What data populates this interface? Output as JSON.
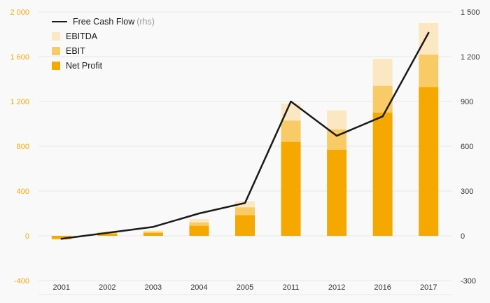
{
  "chart_data": {
    "type": "bar",
    "subtype": "stacked-bar-with-line",
    "categories": [
      "2001",
      "2002",
      "2003",
      "2004",
      "2005",
      "2011",
      "2012",
      "2016",
      "2017"
    ],
    "series": [
      {
        "name": "Net Profit",
        "color": "#F5A800",
        "values": [
          -25,
          20,
          25,
          90,
          185,
          840,
          770,
          1100,
          1330
        ]
      },
      {
        "name": "EBIT",
        "color": "#F8CB66",
        "values": [
          -8,
          10,
          12,
          30,
          70,
          190,
          180,
          240,
          290
        ]
      },
      {
        "name": "EBITDA",
        "color": "#FBE8C2",
        "values": [
          0,
          8,
          10,
          30,
          55,
          150,
          170,
          240,
          280
        ]
      }
    ],
    "line_series": {
      "name": "Free Cash Flow",
      "note": "(rhs)",
      "color": "#1a1a1a",
      "axis": "right",
      "values": [
        -20,
        20,
        60,
        150,
        220,
        900,
        670,
        800,
        1360
      ]
    },
    "left_axis": {
      "min": -400,
      "max": 2000,
      "step": 400,
      "color": "#F5A800",
      "tick_labels": [
        "2 000",
        "1 600",
        "1 200",
        "800",
        "400",
        "0",
        "-400"
      ]
    },
    "right_axis": {
      "min": -300,
      "max": 1500,
      "step": 300,
      "color": "#333333",
      "tick_labels": [
        "1 500",
        "1 200",
        "900",
        "600",
        "300",
        "0",
        "-300"
      ]
    },
    "grid": "horizontal",
    "legend_position": "top-left",
    "title": "",
    "xlabel": "",
    "ylabel": ""
  },
  "legend": {
    "fcf_label": "Free Cash Flow",
    "fcf_note": "(rhs)",
    "ebitda_label": "EBITDA",
    "ebit_label": "EBIT",
    "net_profit_label": "Net Profit"
  },
  "colors": {
    "background": "#f9f9f9",
    "gridline": "#e6e6e6",
    "axis_text_left": "#F5A800",
    "axis_text_right": "#333333",
    "axis_text_x": "#333333",
    "line": "#1a1a1a"
  }
}
